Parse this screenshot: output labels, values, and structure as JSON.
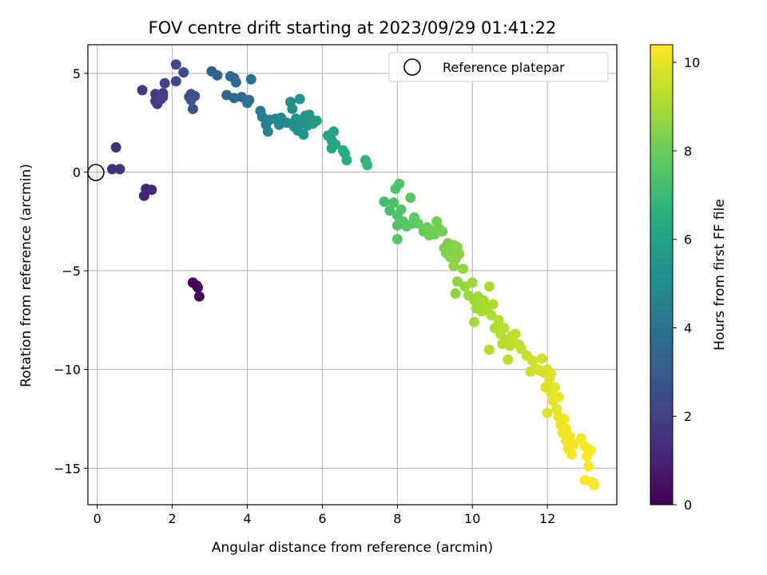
{
  "chart_data": {
    "type": "scatter",
    "title": "FOV centre drift starting at 2023/09/29 01:41:22",
    "xlabel": "Angular distance from reference (arcmin)",
    "ylabel": "Rotation from reference (arcmin)",
    "xlim": [
      -0.25,
      13.85
    ],
    "ylim": [
      -16.85,
      6.45
    ],
    "xticks": [
      0,
      2,
      4,
      6,
      8,
      10,
      12
    ],
    "yticks": [
      5,
      0,
      -5,
      -10,
      -15
    ],
    "xtick_labels": [
      "0",
      "2",
      "4",
      "6",
      "8",
      "10",
      "12"
    ],
    "ytick_labels": [
      "5",
      "0",
      "−5",
      "−10",
      "−15"
    ],
    "grid": true,
    "colormap": "viridis",
    "colorbar": {
      "label": "Hours from first FF file",
      "range": [
        0,
        10.4
      ],
      "ticks": [
        0,
        2,
        4,
        6,
        8,
        10
      ],
      "tick_labels": [
        "0",
        "2",
        "4",
        "6",
        "8",
        "10"
      ]
    },
    "legend": {
      "position": "top-right",
      "entries": [
        {
          "label": "Reference platepar",
          "marker": "open-circle"
        }
      ]
    },
    "reference_point": {
      "x": 0,
      "y": 0
    },
    "series": [
      {
        "points": [
          {
            "x": 2.55,
            "y": -5.6,
            "c": 0.1
          },
          {
            "x": 2.65,
            "y": -5.75,
            "c": 0.15
          },
          {
            "x": 2.68,
            "y": -5.85,
            "c": 0.2
          },
          {
            "x": 2.72,
            "y": -6.3,
            "c": 0.25
          },
          {
            "x": 1.25,
            "y": -1.2,
            "c": 1.0
          },
          {
            "x": 1.3,
            "y": -0.85,
            "c": 1.05
          },
          {
            "x": 1.45,
            "y": -0.9,
            "c": 1.1
          },
          {
            "x": 0.4,
            "y": 0.15,
            "c": 1.4
          },
          {
            "x": 0.5,
            "y": 1.25,
            "c": 1.45
          },
          {
            "x": 0.6,
            "y": 0.15,
            "c": 1.5
          },
          {
            "x": 1.2,
            "y": 4.15,
            "c": 1.8
          },
          {
            "x": 1.55,
            "y": 3.6,
            "c": 1.85
          },
          {
            "x": 1.6,
            "y": 3.45,
            "c": 1.9
          },
          {
            "x": 1.55,
            "y": 3.95,
            "c": 1.9
          },
          {
            "x": 1.7,
            "y": 3.7,
            "c": 1.95
          },
          {
            "x": 1.75,
            "y": 3.8,
            "c": 2.0
          },
          {
            "x": 1.75,
            "y": 4.0,
            "c": 2.05
          },
          {
            "x": 1.8,
            "y": 4.5,
            "c": 2.1
          },
          {
            "x": 2.1,
            "y": 4.6,
            "c": 2.3
          },
          {
            "x": 2.1,
            "y": 5.45,
            "c": 2.35
          },
          {
            "x": 2.3,
            "y": 5.05,
            "c": 2.4
          },
          {
            "x": 2.45,
            "y": 3.8,
            "c": 2.5
          },
          {
            "x": 2.5,
            "y": 3.95,
            "c": 2.55
          },
          {
            "x": 2.55,
            "y": 3.2,
            "c": 2.6
          },
          {
            "x": 2.6,
            "y": 3.85,
            "c": 2.65
          },
          {
            "x": 2.5,
            "y": 3.65,
            "c": 2.7
          },
          {
            "x": 3.05,
            "y": 5.1,
            "c": 3.2
          },
          {
            "x": 3.2,
            "y": 4.9,
            "c": 3.3
          },
          {
            "x": 3.45,
            "y": 3.9,
            "c": 3.45
          },
          {
            "x": 3.55,
            "y": 4.85,
            "c": 3.5
          },
          {
            "x": 3.65,
            "y": 4.75,
            "c": 3.55
          },
          {
            "x": 3.7,
            "y": 4.55,
            "c": 3.6
          },
          {
            "x": 3.65,
            "y": 3.75,
            "c": 3.6
          },
          {
            "x": 3.85,
            "y": 3.8,
            "c": 3.7
          },
          {
            "x": 4.0,
            "y": 3.5,
            "c": 3.8
          },
          {
            "x": 4.05,
            "y": 3.65,
            "c": 3.85
          },
          {
            "x": 4.1,
            "y": 4.7,
            "c": 3.9
          },
          {
            "x": 4.35,
            "y": 3.1,
            "c": 4.3
          },
          {
            "x": 4.4,
            "y": 2.8,
            "c": 4.4
          },
          {
            "x": 4.5,
            "y": 2.4,
            "c": 4.5
          },
          {
            "x": 4.55,
            "y": 2.05,
            "c": 4.55
          },
          {
            "x": 4.6,
            "y": 2.65,
            "c": 4.6
          },
          {
            "x": 4.75,
            "y": 2.7,
            "c": 4.7
          },
          {
            "x": 4.85,
            "y": 2.4,
            "c": 4.8
          },
          {
            "x": 4.9,
            "y": 2.75,
            "c": 4.85
          },
          {
            "x": 5.05,
            "y": 2.5,
            "c": 4.95
          },
          {
            "x": 5.15,
            "y": 3.55,
            "c": 5.05
          },
          {
            "x": 5.2,
            "y": 3.2,
            "c": 5.1
          },
          {
            "x": 5.25,
            "y": 2.3,
            "c": 5.15
          },
          {
            "x": 5.3,
            "y": 2.7,
            "c": 5.2
          },
          {
            "x": 5.35,
            "y": 2.1,
            "c": 5.25
          },
          {
            "x": 5.4,
            "y": 3.7,
            "c": 5.3
          },
          {
            "x": 5.45,
            "y": 2.5,
            "c": 5.35
          },
          {
            "x": 5.5,
            "y": 1.9,
            "c": 5.4
          },
          {
            "x": 5.55,
            "y": 2.85,
            "c": 5.45
          },
          {
            "x": 5.6,
            "y": 2.35,
            "c": 5.5
          },
          {
            "x": 5.65,
            "y": 2.9,
            "c": 5.55
          },
          {
            "x": 5.7,
            "y": 2.65,
            "c": 5.6
          },
          {
            "x": 5.75,
            "y": 2.45,
            "c": 5.65
          },
          {
            "x": 5.85,
            "y": 2.6,
            "c": 5.7
          },
          {
            "x": 6.15,
            "y": 1.85,
            "c": 6.0
          },
          {
            "x": 6.25,
            "y": 1.6,
            "c": 6.05
          },
          {
            "x": 6.3,
            "y": 2.05,
            "c": 6.1
          },
          {
            "x": 6.25,
            "y": 1.2,
            "c": 6.15
          },
          {
            "x": 6.35,
            "y": 1.4,
            "c": 6.2
          },
          {
            "x": 6.55,
            "y": 1.1,
            "c": 6.35
          },
          {
            "x": 6.6,
            "y": 0.95,
            "c": 6.4
          },
          {
            "x": 6.65,
            "y": 0.6,
            "c": 6.45
          },
          {
            "x": 7.15,
            "y": 0.6,
            "c": 6.8
          },
          {
            "x": 7.2,
            "y": 0.35,
            "c": 6.85
          },
          {
            "x": 7.65,
            "y": -1.5,
            "c": 7.2
          },
          {
            "x": 7.8,
            "y": -1.95,
            "c": 7.3
          },
          {
            "x": 7.9,
            "y": -1.55,
            "c": 7.35
          },
          {
            "x": 7.95,
            "y": -0.85,
            "c": 7.4
          },
          {
            "x": 8.0,
            "y": -2.2,
            "c": 7.45
          },
          {
            "x": 8.05,
            "y": -0.6,
            "c": 7.45
          },
          {
            "x": 8.0,
            "y": -2.7,
            "c": 7.5
          },
          {
            "x": 8.0,
            "y": -3.4,
            "c": 7.5
          },
          {
            "x": 8.1,
            "y": -1.9,
            "c": 7.55
          },
          {
            "x": 8.15,
            "y": -2.5,
            "c": 7.6
          },
          {
            "x": 8.25,
            "y": -2.75,
            "c": 7.65
          },
          {
            "x": 8.35,
            "y": -1.3,
            "c": 7.7
          },
          {
            "x": 8.4,
            "y": -2.6,
            "c": 7.75
          },
          {
            "x": 8.45,
            "y": -2.3,
            "c": 7.8
          },
          {
            "x": 8.55,
            "y": -2.6,
            "c": 7.85
          },
          {
            "x": 8.7,
            "y": -3.0,
            "c": 7.95
          },
          {
            "x": 8.8,
            "y": -2.8,
            "c": 8.0
          },
          {
            "x": 8.85,
            "y": -3.2,
            "c": 8.05
          },
          {
            "x": 8.9,
            "y": -2.95,
            "c": 8.1
          },
          {
            "x": 9.0,
            "y": -3.15,
            "c": 8.1
          },
          {
            "x": 9.05,
            "y": -2.5,
            "c": 8.15
          },
          {
            "x": 9.1,
            "y": -2.85,
            "c": 8.15
          },
          {
            "x": 9.2,
            "y": -3.0,
            "c": 8.2
          },
          {
            "x": 9.25,
            "y": -3.85,
            "c": 8.3
          },
          {
            "x": 9.3,
            "y": -4.1,
            "c": 8.35
          },
          {
            "x": 9.35,
            "y": -3.6,
            "c": 8.35
          },
          {
            "x": 9.4,
            "y": -4.3,
            "c": 8.4
          },
          {
            "x": 9.45,
            "y": -3.95,
            "c": 8.4
          },
          {
            "x": 9.5,
            "y": -3.7,
            "c": 8.45
          },
          {
            "x": 9.55,
            "y": -4.4,
            "c": 8.45
          },
          {
            "x": 9.6,
            "y": -3.8,
            "c": 8.5
          },
          {
            "x": 9.65,
            "y": -4.15,
            "c": 8.5
          },
          {
            "x": 9.5,
            "y": -4.75,
            "c": 8.55
          },
          {
            "x": 9.6,
            "y": -5.55,
            "c": 8.6
          },
          {
            "x": 9.55,
            "y": -6.15,
            "c": 8.6
          },
          {
            "x": 9.75,
            "y": -4.9,
            "c": 8.65
          },
          {
            "x": 9.8,
            "y": -5.8,
            "c": 8.7
          },
          {
            "x": 9.9,
            "y": -6.25,
            "c": 8.75
          },
          {
            "x": 10.0,
            "y": -5.6,
            "c": 8.8
          },
          {
            "x": 10.05,
            "y": -6.5,
            "c": 8.85
          },
          {
            "x": 10.1,
            "y": -6.9,
            "c": 8.9
          },
          {
            "x": 10.15,
            "y": -6.3,
            "c": 8.9
          },
          {
            "x": 10.2,
            "y": -6.6,
            "c": 8.95
          },
          {
            "x": 10.05,
            "y": -7.6,
            "c": 8.95
          },
          {
            "x": 10.25,
            "y": -7.05,
            "c": 9.0
          },
          {
            "x": 10.3,
            "y": -6.5,
            "c": 9.0
          },
          {
            "x": 10.4,
            "y": -6.85,
            "c": 9.05
          },
          {
            "x": 10.45,
            "y": -5.8,
            "c": 9.05
          },
          {
            "x": 10.5,
            "y": -7.25,
            "c": 9.1
          },
          {
            "x": 10.55,
            "y": -6.7,
            "c": 9.1
          },
          {
            "x": 10.6,
            "y": -7.9,
            "c": 9.15
          },
          {
            "x": 10.7,
            "y": -7.5,
            "c": 9.2
          },
          {
            "x": 10.75,
            "y": -8.2,
            "c": 9.2
          },
          {
            "x": 10.45,
            "y": -9.0,
            "c": 9.2
          },
          {
            "x": 10.8,
            "y": -8.7,
            "c": 9.25
          },
          {
            "x": 10.85,
            "y": -7.9,
            "c": 9.25
          },
          {
            "x": 10.9,
            "y": -8.5,
            "c": 9.3
          },
          {
            "x": 10.95,
            "y": -9.5,
            "c": 9.35
          },
          {
            "x": 11.0,
            "y": -8.8,
            "c": 9.35
          },
          {
            "x": 11.05,
            "y": -8.3,
            "c": 9.4
          },
          {
            "x": 11.1,
            "y": -8.6,
            "c": 9.4
          },
          {
            "x": 11.15,
            "y": -8.2,
            "c": 9.45
          },
          {
            "x": 11.25,
            "y": -8.75,
            "c": 9.45
          },
          {
            "x": 11.3,
            "y": -8.95,
            "c": 9.5
          },
          {
            "x": 11.45,
            "y": -9.3,
            "c": 9.55
          },
          {
            "x": 11.55,
            "y": -10.1,
            "c": 9.6
          },
          {
            "x": 11.6,
            "y": -9.55,
            "c": 9.6
          },
          {
            "x": 11.7,
            "y": -9.95,
            "c": 9.65
          },
          {
            "x": 11.8,
            "y": -10.05,
            "c": 9.7
          },
          {
            "x": 11.85,
            "y": -9.45,
            "c": 9.7
          },
          {
            "x": 11.9,
            "y": -10.15,
            "c": 9.75
          },
          {
            "x": 12.0,
            "y": -10.0,
            "c": 9.8
          },
          {
            "x": 11.95,
            "y": -10.9,
            "c": 9.85
          },
          {
            "x": 12.05,
            "y": -10.5,
            "c": 9.85
          },
          {
            "x": 12.1,
            "y": -10.2,
            "c": 9.9
          },
          {
            "x": 12.0,
            "y": -12.2,
            "c": 9.9
          },
          {
            "x": 12.1,
            "y": -11.2,
            "c": 9.95
          },
          {
            "x": 12.15,
            "y": -11.6,
            "c": 9.95
          },
          {
            "x": 12.2,
            "y": -10.9,
            "c": 10.0
          },
          {
            "x": 12.25,
            "y": -12.0,
            "c": 10.0
          },
          {
            "x": 12.3,
            "y": -11.4,
            "c": 10.05
          },
          {
            "x": 12.3,
            "y": -12.4,
            "c": 10.05
          },
          {
            "x": 12.35,
            "y": -12.8,
            "c": 10.1
          },
          {
            "x": 12.4,
            "y": -13.2,
            "c": 10.1
          },
          {
            "x": 12.45,
            "y": -12.5,
            "c": 10.15
          },
          {
            "x": 12.5,
            "y": -13.6,
            "c": 10.15
          },
          {
            "x": 12.5,
            "y": -13.0,
            "c": 10.2
          },
          {
            "x": 12.55,
            "y": -14.0,
            "c": 10.2
          },
          {
            "x": 12.6,
            "y": -13.4,
            "c": 10.25
          },
          {
            "x": 12.65,
            "y": -14.3,
            "c": 10.25
          },
          {
            "x": 12.7,
            "y": -13.8,
            "c": 10.3
          },
          {
            "x": 12.9,
            "y": -13.5,
            "c": 10.3
          },
          {
            "x": 13.0,
            "y": -13.9,
            "c": 10.35
          },
          {
            "x": 13.05,
            "y": -14.4,
            "c": 10.35
          },
          {
            "x": 13.1,
            "y": -14.9,
            "c": 10.4
          },
          {
            "x": 13.15,
            "y": -14.1,
            "c": 10.4
          },
          {
            "x": 13.0,
            "y": -15.6,
            "c": 10.4
          },
          {
            "x": 13.2,
            "y": -15.7,
            "c": 10.4
          },
          {
            "x": 13.25,
            "y": -15.85,
            "c": 10.4
          }
        ]
      }
    ]
  }
}
